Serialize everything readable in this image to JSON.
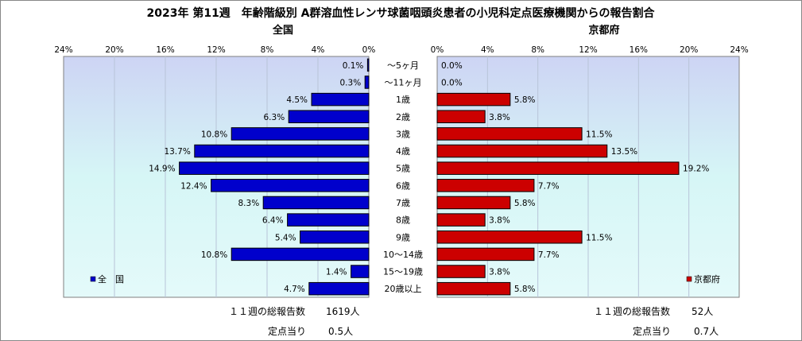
{
  "chart_data": {
    "type": "bar",
    "title": "2023年 第11週　年齢階級別 A群溶血性レンサ球菌咽頭炎患者の小児科定点医療機関からの報告割合",
    "categories": [
      "～5ヶ月",
      "～11ヶ月",
      "1歳",
      "2歳",
      "3歳",
      "4歳",
      "5歳",
      "6歳",
      "7歳",
      "8歳",
      "9歳",
      "10～14歳",
      "15～19歳",
      "20歳以上"
    ],
    "xlim": [
      0,
      24
    ],
    "xticks": [
      "0%",
      "4%",
      "8%",
      "12%",
      "16%",
      "20%",
      "24%"
    ],
    "series": [
      {
        "name": "全　国",
        "panel_title": "全国",
        "color": "#0000cc",
        "values": [
          0.1,
          0.3,
          4.5,
          6.3,
          10.8,
          13.7,
          14.9,
          12.4,
          8.3,
          6.4,
          5.4,
          10.8,
          1.4,
          4.7
        ],
        "labels": [
          "0.1%",
          "0.3%",
          "4.5%",
          "6.3%",
          "10.8%",
          "13.7%",
          "14.9%",
          "12.4%",
          "8.3%",
          "6.4%",
          "5.4%",
          "10.8%",
          "1.4%",
          "4.7%"
        ]
      },
      {
        "name": "京都府",
        "panel_title": "京都府",
        "color": "#cc0000",
        "values": [
          0.0,
          0.0,
          5.8,
          3.8,
          11.5,
          13.5,
          19.2,
          7.7,
          5.8,
          3.8,
          11.5,
          7.7,
          3.8,
          5.8
        ],
        "labels": [
          "0.0%",
          "0.0%",
          "5.8%",
          "3.8%",
          "11.5%",
          "13.5%",
          "19.2%",
          "7.7%",
          "5.8%",
          "3.8%",
          "11.5%",
          "7.7%",
          "3.8%",
          "5.8%"
        ]
      }
    ],
    "grid": true,
    "legend": "bottom-left / bottom-right"
  },
  "footer": {
    "national_total_label": "１１週の総報告数",
    "national_total_value": "1619人",
    "national_per_label": "定点当り",
    "national_per_value": "0.5人",
    "kyoto_total_label": "１１週の総報告数",
    "kyoto_total_value": "52人",
    "kyoto_per_label": "定点当り",
    "kyoto_per_value": "0.7人"
  }
}
